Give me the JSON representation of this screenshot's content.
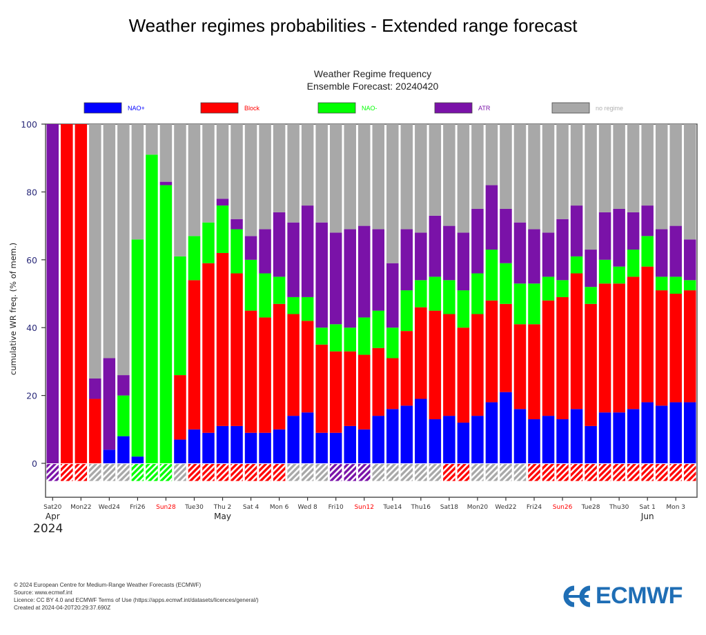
{
  "page": {
    "title": "Weather regimes probabilities - Extended range forecast"
  },
  "footer": {
    "lines": [
      "© 2024 European Centre for Medium-Range Weather Forecasts (ECMWF)",
      "Source: www.ecmwf.int",
      "Licence: CC BY 4.0 and ECMWF Terms of Use (https://apps.ecmwf.int/datasets/licences/general/)",
      "Created at 2024-04-20T20:29:37.690Z"
    ]
  },
  "logo": {
    "text": "ECMWF",
    "icon": "ecmwf-logo-icon",
    "color": "#1f6eb5"
  },
  "chart_data": {
    "type": "bar",
    "stacked": true,
    "title": "Weather Regime frequency",
    "subtitle": "Ensemble Forecast: 20240420",
    "xlabel": "",
    "ylabel": "cumulative WR freq. (% of mem.)",
    "ylim": [
      -10,
      100
    ],
    "yticks": [
      0,
      20,
      40,
      60,
      80,
      100
    ],
    "grid": false,
    "legend_position": "top",
    "legend": [
      {
        "name": "NAO+",
        "color": "#0000ff"
      },
      {
        "name": "Block",
        "color": "#ff0000"
      },
      {
        "name": "NAO-",
        "color": "#00ff00"
      },
      {
        "name": "ATR",
        "color": "#7a12a8"
      },
      {
        "name": "no regime",
        "color": "#a8a8a8"
      }
    ],
    "categories": [
      "2024-04-20",
      "2024-04-21",
      "2024-04-22",
      "2024-04-23",
      "2024-04-24",
      "2024-04-25",
      "2024-04-26",
      "2024-04-27",
      "2024-04-28",
      "2024-04-29",
      "2024-04-30",
      "2024-05-01",
      "2024-05-02",
      "2024-05-03",
      "2024-05-04",
      "2024-05-05",
      "2024-05-06",
      "2024-05-07",
      "2024-05-08",
      "2024-05-09",
      "2024-05-10",
      "2024-05-11",
      "2024-05-12",
      "2024-05-13",
      "2024-05-14",
      "2024-05-15",
      "2024-05-16",
      "2024-05-17",
      "2024-05-18",
      "2024-05-19",
      "2024-05-20",
      "2024-05-21",
      "2024-05-22",
      "2024-05-23",
      "2024-05-24",
      "2024-05-25",
      "2024-05-26",
      "2024-05-27",
      "2024-05-28",
      "2024-05-29",
      "2024-05-30",
      "2024-05-31",
      "2024-06-01",
      "2024-06-02",
      "2024-06-03",
      "2024-06-04"
    ],
    "series": [
      {
        "name": "NAO+",
        "values": [
          0,
          0,
          0,
          0,
          4,
          8,
          2,
          0,
          0,
          7,
          10,
          9,
          11,
          11,
          9,
          9,
          10,
          14,
          15,
          9,
          9,
          11,
          10,
          14,
          16,
          17,
          19,
          13,
          14,
          12,
          14,
          18,
          21,
          16,
          13,
          14,
          13,
          16,
          11,
          15,
          15,
          16,
          18,
          17,
          18,
          18
        ]
      },
      {
        "name": "Block",
        "values": [
          0,
          100,
          100,
          19,
          0,
          0,
          0,
          0,
          0,
          19,
          44,
          50,
          51,
          45,
          36,
          34,
          37,
          30,
          27,
          26,
          24,
          22,
          22,
          20,
          15,
          22,
          27,
          32,
          30,
          28,
          30,
          30,
          26,
          25,
          28,
          34,
          36,
          40,
          36,
          38,
          38,
          39,
          40,
          34,
          32,
          33
        ]
      },
      {
        "name": "NAO-",
        "values": [
          0,
          0,
          0,
          0,
          0,
          12,
          64,
          91,
          82,
          35,
          13,
          12,
          14,
          13,
          15,
          13,
          8,
          5,
          7,
          5,
          8,
          7,
          11,
          11,
          9,
          12,
          8,
          10,
          10,
          11,
          12,
          15,
          12,
          12,
          12,
          7,
          5,
          5,
          5,
          7,
          5,
          8,
          9,
          4,
          5,
          3
        ]
      },
      {
        "name": "ATR",
        "values": [
          100,
          0,
          0,
          6,
          27,
          6,
          0,
          0,
          1,
          0,
          0,
          0,
          2,
          3,
          7,
          13,
          19,
          22,
          27,
          31,
          27,
          29,
          27,
          24,
          19,
          18,
          14,
          18,
          16,
          17,
          19,
          19,
          16,
          18,
          16,
          13,
          18,
          15,
          11,
          14,
          17,
          11,
          9,
          14,
          15,
          12
        ]
      },
      {
        "name": "no regime",
        "values": [
          0,
          0,
          0,
          75,
          69,
          74,
          34,
          9,
          17,
          39,
          33,
          29,
          22,
          28,
          33,
          31,
          26,
          29,
          24,
          29,
          32,
          31,
          30,
          31,
          41,
          31,
          32,
          27,
          30,
          32,
          25,
          18,
          25,
          29,
          31,
          32,
          28,
          24,
          37,
          26,
          25,
          26,
          24,
          31,
          30,
          34
        ]
      }
    ],
    "dominant_regime": [
      "ATR",
      "Block",
      "Block",
      "no regime",
      "no regime",
      "no regime",
      "NAO-",
      "NAO-",
      "NAO-",
      "no regime",
      "Block",
      "Block",
      "Block",
      "Block",
      "Block",
      "Block",
      "Block",
      "no regime",
      "no regime",
      "no regime",
      "ATR",
      "ATR",
      "ATR",
      "no regime",
      "no regime",
      "no regime",
      "no regime",
      "no regime",
      "Block",
      "Block",
      "no regime",
      "no regime",
      "no regime",
      "no regime",
      "Block",
      "Block",
      "Block",
      "Block",
      "Block",
      "Block",
      "Block",
      "Block",
      "Block",
      "Block",
      "Block",
      "Block"
    ],
    "x_tick_labels": [
      {
        "index": 0,
        "label": "Sat20",
        "weekend": false
      },
      {
        "index": 2,
        "label": "Mon22",
        "weekend": false
      },
      {
        "index": 4,
        "label": "Wed24",
        "weekend": false
      },
      {
        "index": 6,
        "label": "Fri26",
        "weekend": false
      },
      {
        "index": 8,
        "label": "Sun28",
        "weekend": true
      },
      {
        "index": 10,
        "label": "Tue30",
        "weekend": false
      },
      {
        "index": 12,
        "label": "Thu 2",
        "weekend": false
      },
      {
        "index": 14,
        "label": "Sat 4",
        "weekend": false
      },
      {
        "index": 16,
        "label": "Mon 6",
        "weekend": false
      },
      {
        "index": 18,
        "label": "Wed 8",
        "weekend": false
      },
      {
        "index": 20,
        "label": "Fri10",
        "weekend": false
      },
      {
        "index": 22,
        "label": "Sun12",
        "weekend": true
      },
      {
        "index": 24,
        "label": "Tue14",
        "weekend": false
      },
      {
        "index": 26,
        "label": "Thu16",
        "weekend": false
      },
      {
        "index": 28,
        "label": "Sat18",
        "weekend": false
      },
      {
        "index": 30,
        "label": "Mon20",
        "weekend": false
      },
      {
        "index": 32,
        "label": "Wed22",
        "weekend": false
      },
      {
        "index": 34,
        "label": "Fri24",
        "weekend": false
      },
      {
        "index": 36,
        "label": "Sun26",
        "weekend": true
      },
      {
        "index": 38,
        "label": "Tue28",
        "weekend": false
      },
      {
        "index": 40,
        "label": "Thu30",
        "weekend": false
      },
      {
        "index": 42,
        "label": "Sat 1",
        "weekend": false
      },
      {
        "index": 44,
        "label": "Mon 3",
        "weekend": false
      }
    ],
    "month_labels": [
      {
        "index": 0,
        "label": "Apr"
      },
      {
        "index": 12,
        "label": "May"
      },
      {
        "index": 42,
        "label": "Jun"
      }
    ],
    "year_label": "2024",
    "weekend_label_color": "#ff0000",
    "tick_label_color": "#333333",
    "ytick_label_color": "#2b2b7a"
  }
}
